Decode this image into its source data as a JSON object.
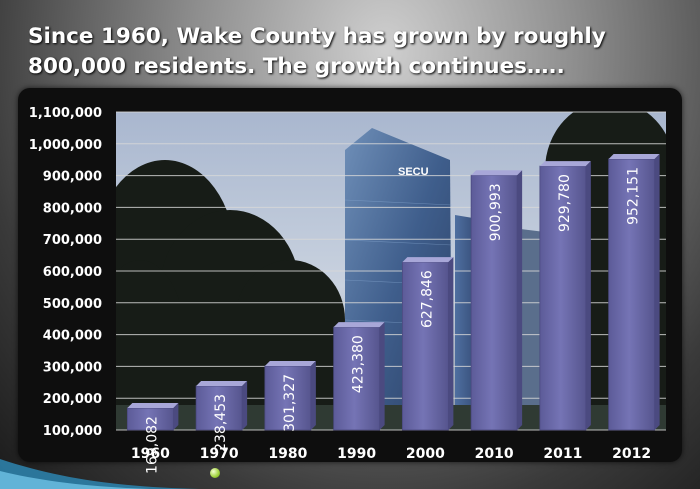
{
  "slide": {
    "title_line1": "Since 1960, Wake County has grown by roughly",
    "title_line2": "800,000 residents.  The growth continues…..",
    "photo_sign": "SECU"
  },
  "colors": {
    "bar_face": "#6b6aa8",
    "bar_top": "#a8a7d8",
    "bar_side": "#4b4a80",
    "axis_text": "#ffffff",
    "gridline": "#d8d8d8",
    "panel_bg": "#0e0e0e",
    "accent_wave": "#5bb0d8"
  },
  "chart_data": {
    "type": "bar",
    "title": "",
    "xlabel": "",
    "ylabel": "",
    "categories": [
      "1960",
      "1970",
      "1980",
      "1990",
      "2000",
      "2010",
      "2011",
      "2012"
    ],
    "values": [
      169082,
      238453,
      301327,
      423380,
      627846,
      900993,
      929780,
      952151
    ],
    "data_labels": [
      "169,082",
      "238,453",
      "301,327",
      "423,380",
      "627,846",
      "900,993",
      "929,780",
      "952,151"
    ],
    "ylim": [
      100000,
      1100000
    ],
    "yticks": [
      100000,
      200000,
      300000,
      400000,
      500000,
      600000,
      700000,
      800000,
      900000,
      1000000,
      1100000
    ],
    "ytick_labels": [
      "100,000",
      "200,000",
      "300,000",
      "400,000",
      "500,000",
      "600,000",
      "700,000",
      "800,000",
      "900,000",
      "1,000,000",
      "1,100,000"
    ],
    "grid": true,
    "legend": "none",
    "data_label_orientation": "vertical"
  }
}
